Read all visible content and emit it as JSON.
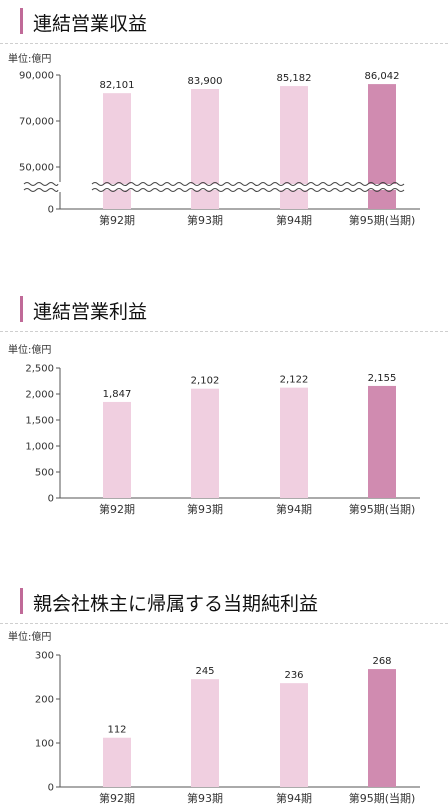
{
  "chart_data": [
    {
      "type": "bar",
      "title": "連結営業収益",
      "unit_label": "単位:億円",
      "categories": [
        "第92期",
        "第93期",
        "第94期",
        "第95期(当期)"
      ],
      "values": [
        82101,
        83900,
        85182,
        86042
      ],
      "value_labels": [
        "82,101",
        "83,900",
        "85,182",
        "86,042"
      ],
      "yticks": [
        0,
        50000,
        70000,
        90000
      ],
      "ytick_labels": [
        "0",
        "50,000",
        "70,000",
        "90,000"
      ],
      "ylim": [
        0,
        90000
      ],
      "axis_break": true,
      "highlight_index": 3,
      "grid": false,
      "legend": "none"
    },
    {
      "type": "bar",
      "title": "連結営業利益",
      "unit_label": "単位:億円",
      "categories": [
        "第92期",
        "第93期",
        "第94期",
        "第95期(当期)"
      ],
      "values": [
        1847,
        2102,
        2122,
        2155
      ],
      "value_labels": [
        "1,847",
        "2,102",
        "2,122",
        "2,155"
      ],
      "yticks": [
        0,
        500,
        1000,
        1500,
        2000,
        2500
      ],
      "ytick_labels": [
        "0",
        "500",
        "1,000",
        "1,500",
        "2,000",
        "2,500"
      ],
      "ylim": [
        0,
        2500
      ],
      "axis_break": false,
      "highlight_index": 3,
      "grid": false,
      "legend": "none"
    },
    {
      "type": "bar",
      "title": "親会社株主に帰属する当期純利益",
      "unit_label": "単位:億円",
      "categories": [
        "第92期",
        "第93期",
        "第94期",
        "第95期(当期)"
      ],
      "values": [
        112,
        245,
        236,
        268
      ],
      "value_labels": [
        "112",
        "245",
        "236",
        "268"
      ],
      "yticks": [
        0,
        100,
        200,
        300
      ],
      "ytick_labels": [
        "0",
        "100",
        "200",
        "300"
      ],
      "ylim": [
        0,
        300
      ],
      "axis_break": false,
      "highlight_index": 3,
      "grid": false,
      "legend": "none"
    }
  ],
  "colors": {
    "bar": "#f0cfe0",
    "bar_highlight": "#d08bb0",
    "accent": "#c06a98",
    "axis": "#555555"
  }
}
